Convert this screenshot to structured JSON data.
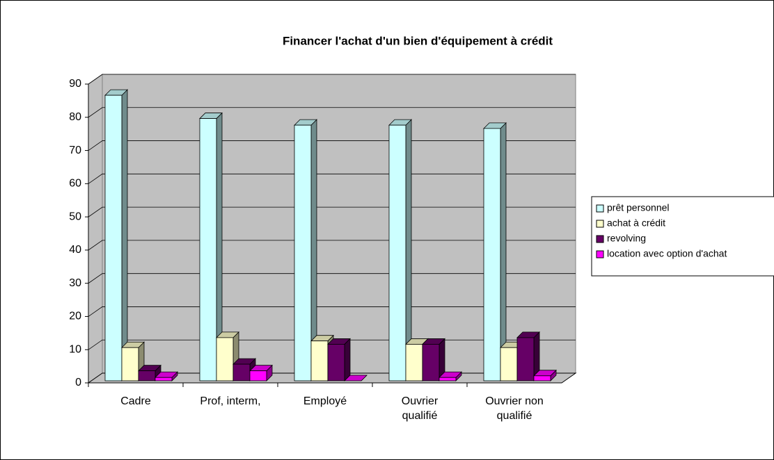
{
  "chart_data": {
    "type": "bar3d",
    "title": "Financer l'achat d'un bien d'équipement à crédit",
    "categories": [
      "Cadre",
      "Prof, interm,",
      "Employé",
      "Ouvrier qualifié",
      "Ouvrier non qualifié"
    ],
    "series": [
      {
        "name": "prêt personnel",
        "color": "#ccffff",
        "values": [
          86,
          79,
          77,
          77,
          76
        ]
      },
      {
        "name": "achat à crédit",
        "color": "#ffffcc",
        "values": [
          10,
          13,
          12,
          11,
          10
        ]
      },
      {
        "name": "revolving",
        "color": "#660066",
        "values": [
          3,
          5,
          11,
          11,
          13
        ]
      },
      {
        "name": "location avec option d'achat",
        "color": "#ff00ff",
        "values": [
          1,
          3,
          0,
          1,
          1.5
        ]
      }
    ],
    "ylim": [
      0,
      90
    ],
    "yticks": [
      0,
      10,
      20,
      30,
      40,
      50,
      60,
      70,
      80,
      90
    ],
    "grid": true,
    "wall_color": "#c0c0c0",
    "legend": "right"
  }
}
